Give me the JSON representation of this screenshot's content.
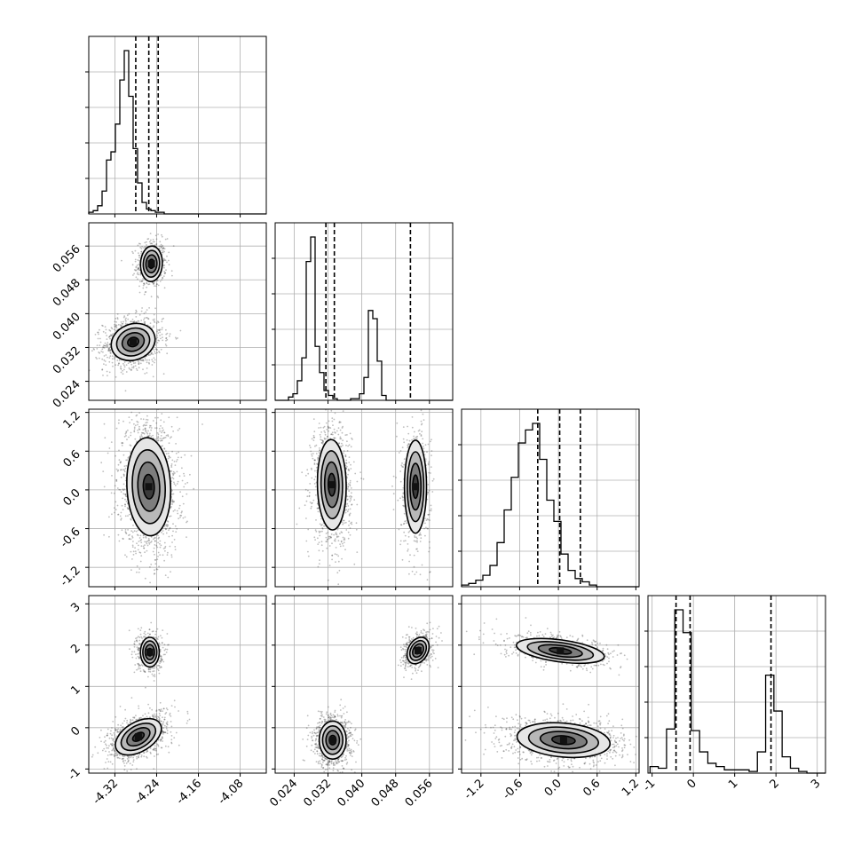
{
  "chart_data": {
    "type": "corner",
    "grid": true,
    "style": {
      "line_color": "#000000",
      "grid_color": "#b0b0b0",
      "density_colors": [
        "#ffffff",
        "#e6e6e6",
        "#b8b8b8",
        "#7d7d7d",
        "#3a3a3a"
      ],
      "scatter_color": "#444444"
    },
    "parameters": [
      {
        "range": [
          -4.37,
          -4.03
        ],
        "ticks": [
          "-4.32",
          "-4.24",
          "-4.16",
          "-4.08"
        ],
        "tick_values": [
          -4.32,
          -4.24,
          -4.16,
          -4.08
        ],
        "quantiles": [
          -4.28,
          -4.255,
          -4.237
        ],
        "hist": {
          "edges_start": -4.37,
          "bin_width": 0.0085,
          "counts": [
            1,
            2,
            5,
            14,
            33,
            38,
            55,
            82,
            100,
            72,
            40,
            19,
            7,
            3,
            2,
            1,
            1,
            0,
            0,
            0,
            0,
            0,
            0,
            0,
            0,
            0,
            0,
            0,
            0,
            0,
            0,
            0,
            0,
            0,
            0,
            0,
            0,
            0,
            0,
            0
          ]
        }
      },
      {
        "range": [
          0.0195,
          0.0615
        ],
        "ticks": [
          "0.024",
          "0.032",
          "0.040",
          "0.048",
          "0.056"
        ],
        "tick_values": [
          0.024,
          0.032,
          0.04,
          0.048,
          0.056
        ],
        "quantiles": [
          0.0315,
          0.0335,
          0.0515
        ],
        "hist": {
          "edges_start": 0.0195,
          "bin_width": 0.00105,
          "counts": [
            0,
            0,
            0,
            2,
            4,
            12,
            26,
            85,
            100,
            33,
            17,
            6,
            3,
            1,
            0,
            0,
            0,
            1,
            1,
            4,
            14,
            55,
            50,
            24,
            3,
            0,
            0,
            0,
            0,
            0,
            0,
            0,
            0,
            0,
            0,
            0,
            0,
            0,
            0,
            0
          ]
        }
      },
      {
        "range": [
          -1.5,
          1.25
        ],
        "ticks": [
          "-1.2",
          "-0.6",
          "0.0",
          "0.6",
          "1.2"
        ],
        "tick_values": [
          -1.2,
          -0.6,
          0.0,
          0.6,
          1.2
        ],
        "quantiles": [
          -0.32,
          0.02,
          0.34
        ],
        "hist": {
          "edges_start": -1.5,
          "bin_width": 0.11,
          "counts": [
            1,
            2,
            4,
            7,
            13,
            27,
            47,
            67,
            88,
            96,
            100,
            78,
            53,
            40,
            20,
            10,
            5,
            3,
            1,
            0,
            0,
            0,
            0,
            0,
            0
          ]
        }
      },
      {
        "range": [
          -1.1,
          3.2
        ],
        "ticks": [
          "-1",
          "0",
          "1",
          "2",
          "3"
        ],
        "tick_values": [
          -1,
          0,
          1,
          2,
          3
        ],
        "quantiles": [
          -0.42,
          -0.08,
          1.88
        ],
        "hist": {
          "edges_start": -1.05,
          "bin_width": 0.2,
          "counts": [
            4,
            3,
            27,
            100,
            86,
            26,
            13,
            6,
            4,
            2,
            2,
            2,
            1,
            13,
            60,
            38,
            10,
            3,
            1,
            0,
            0,
            0
          ]
        }
      }
    ],
    "pairs": [
      {
        "row": 1,
        "col": 0,
        "components": [
          {
            "mx": -4.25,
            "my": 0.0518,
            "sx": 0.0105,
            "sy": 0.0021,
            "rho": 0.05,
            "w": 0.35
          },
          {
            "mx": -4.285,
            "my": 0.0333,
            "sx": 0.021,
            "sy": 0.0022,
            "rho": 0.15,
            "w": 0.65
          }
        ]
      },
      {
        "row": 2,
        "col": 0,
        "components": [
          {
            "mx": -4.255,
            "my": 0.05,
            "sx": 0.021,
            "sy": 0.38,
            "rho": -0.08,
            "w": 1.0
          }
        ]
      },
      {
        "row": 2,
        "col": 1,
        "components": [
          {
            "mx": 0.0329,
            "my": 0.08,
            "sx": 0.0017,
            "sy": 0.35,
            "rho": -0.05,
            "w": 0.65
          },
          {
            "mx": 0.0527,
            "my": 0.05,
            "sx": 0.0013,
            "sy": 0.36,
            "rho": 0.0,
            "w": 0.35
          }
        ]
      },
      {
        "row": 3,
        "col": 0,
        "components": [
          {
            "mx": -4.253,
            "my": 1.83,
            "sx": 0.009,
            "sy": 0.18,
            "rho": 0.0,
            "w": 0.35
          },
          {
            "mx": -4.275,
            "my": -0.22,
            "sx": 0.022,
            "sy": 0.22,
            "rho": 0.45,
            "w": 0.65
          }
        ]
      },
      {
        "row": 3,
        "col": 1,
        "components": [
          {
            "mx": 0.0533,
            "my": 1.87,
            "sx": 0.0013,
            "sy": 0.16,
            "rho": 0.3,
            "w": 0.35
          },
          {
            "mx": 0.0331,
            "my": -0.3,
            "sx": 0.0016,
            "sy": 0.23,
            "rho": 0.0,
            "w": 0.65
          }
        ]
      },
      {
        "row": 3,
        "col": 2,
        "components": [
          {
            "mx": 0.03,
            "my": 1.86,
            "sx": 0.34,
            "sy": 0.15,
            "rho": -0.45,
            "w": 0.35
          },
          {
            "mx": 0.08,
            "my": -0.3,
            "sx": 0.36,
            "sy": 0.21,
            "rho": -0.2,
            "w": 0.65
          }
        ]
      }
    ]
  }
}
